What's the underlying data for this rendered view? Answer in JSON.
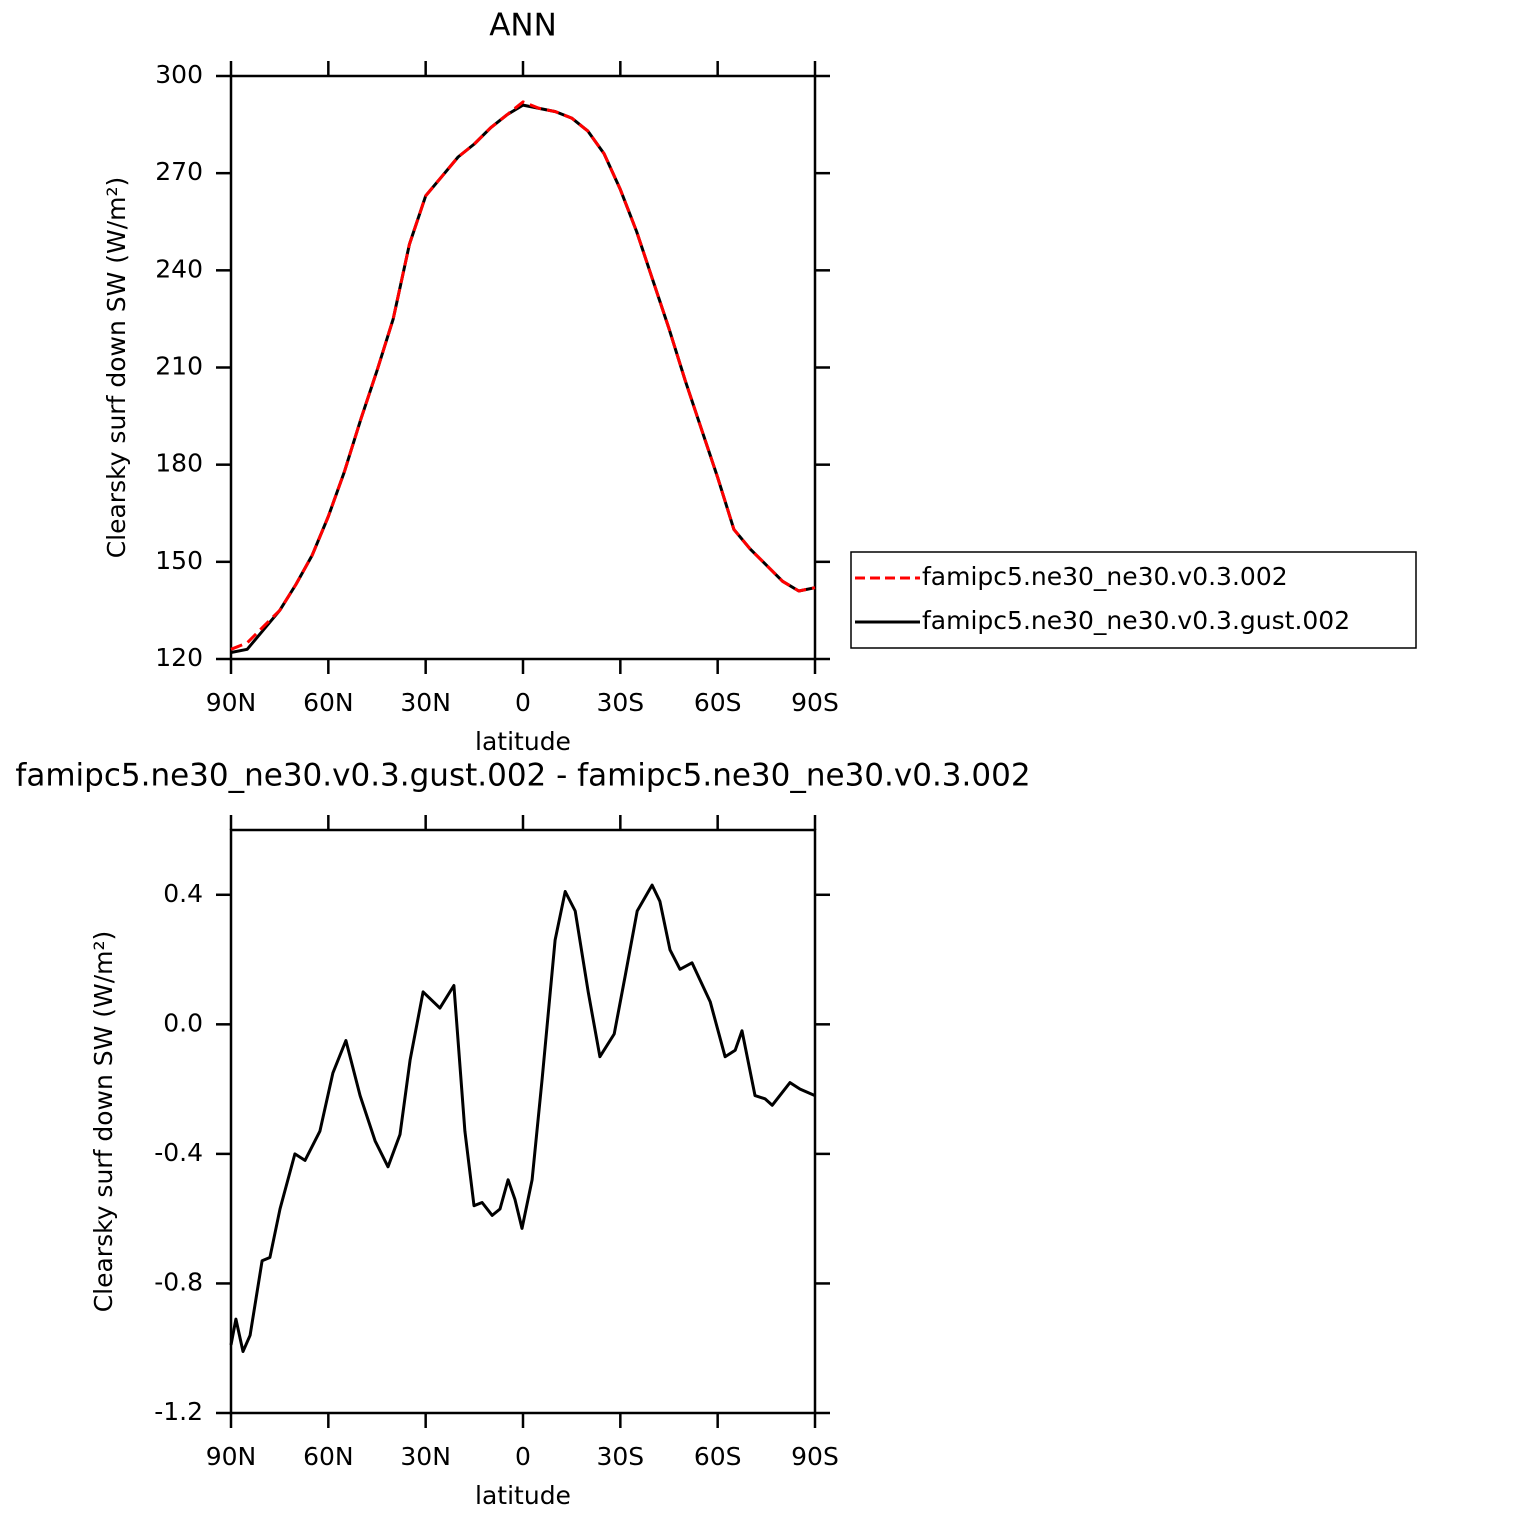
{
  "chart_data": [
    {
      "type": "line",
      "title": "ANN",
      "xlabel": "latitude",
      "ylabel": "Clearsky surf down SW (W/m²)",
      "x": [
        90,
        85,
        80,
        75,
        70,
        65,
        60,
        55,
        50,
        45,
        40,
        35,
        30,
        25,
        20,
        15,
        10,
        5,
        0,
        -5,
        -10,
        -15,
        -20,
        -25,
        -30,
        -35,
        -40,
        -45,
        -50,
        -55,
        -60,
        -65,
        -70,
        -75,
        -80,
        -85,
        -90
      ],
      "series": [
        {
          "name": "famipc5.ne30_ne30.v0.3.002",
          "color": "#ff0000",
          "linestyle": "dashed",
          "values": [
            123,
            125,
            130,
            135,
            143,
            152,
            164,
            178,
            194,
            209,
            225,
            248,
            263,
            269,
            275,
            279,
            284,
            288,
            292,
            290,
            289,
            287,
            283,
            276,
            265,
            252,
            237,
            222,
            206,
            191,
            176,
            160,
            154,
            149,
            144,
            141,
            142
          ]
        },
        {
          "name": "famipc5.ne30_ne30.v0.3.gust.002",
          "color": "#000000",
          "linestyle": "solid",
          "values": [
            122,
            123,
            129,
            135,
            143,
            152,
            164,
            178,
            194,
            209,
            225,
            248,
            263,
            269,
            275,
            279,
            284,
            288,
            291,
            290,
            289,
            287,
            283,
            276,
            265,
            252,
            237,
            222,
            206,
            191,
            176,
            160,
            154,
            149,
            144,
            141,
            142
          ]
        }
      ],
      "xlim": [
        90,
        -90
      ],
      "xticks": [
        {
          "value": 90,
          "label": "90N"
        },
        {
          "value": 60,
          "label": "60N"
        },
        {
          "value": 30,
          "label": "30N"
        },
        0,
        {
          "value": -30,
          "label": "30S"
        },
        {
          "value": -60,
          "label": "60S"
        },
        {
          "value": -90,
          "label": "90S"
        }
      ],
      "ylim": [
        120,
        300
      ],
      "yticks": [
        120,
        150,
        180,
        210,
        240,
        270,
        300
      ],
      "legend": "right"
    },
    {
      "type": "line",
      "title": "famipc5.ne30_ne30.v0.3.gust.002 - famipc5.ne30_ne30.v0.3.002",
      "xlabel": "latitude",
      "ylabel": "Clearsky surf down SW (W/m²)",
      "x": [
        90,
        88.5,
        86.3,
        84.1,
        80.4,
        78,
        74.9,
        70.3,
        67.2,
        62.6,
        58.6,
        54.6,
        50.2,
        45.6,
        41.6,
        37.9,
        34.8,
        30.8,
        25.6,
        21.3,
        17.9,
        15.1,
        12.6,
        9.5,
        7.1,
        4.6,
        2.5,
        0.3,
        -2.8,
        -5.9,
        -9.9,
        -13,
        -16.1,
        -20.1,
        -23.7,
        -28.1,
        -31.5,
        -35.2,
        -39.8,
        -42.2,
        -45.3,
        -48.4,
        -52.1,
        -57.7,
        -62.3,
        -65.4,
        -67.5,
        -71.5,
        -74.6,
        -76.8,
        -82.3,
        -85.4,
        -90
      ],
      "values": [
        -0.99,
        -0.91,
        -1.01,
        -0.96,
        -0.73,
        -0.72,
        -0.57,
        -0.4,
        -0.42,
        -0.33,
        -0.15,
        -0.05,
        -0.22,
        -0.36,
        -0.44,
        -0.34,
        -0.11,
        0.1,
        0.05,
        0.12,
        -0.33,
        -0.56,
        -0.55,
        -0.59,
        -0.57,
        -0.48,
        -0.54,
        -0.63,
        -0.48,
        -0.17,
        0.26,
        0.41,
        0.35,
        0.1,
        -0.1,
        -0.03,
        0.15,
        0.35,
        0.43,
        0.38,
        0.23,
        0.17,
        0.19,
        0.07,
        -0.1,
        -0.08,
        -0.02,
        -0.22,
        -0.23,
        -0.25,
        -0.18,
        -0.2,
        -0.22
      ],
      "color": "#000000",
      "xlim": [
        90,
        -90
      ],
      "xticks": [
        {
          "value": 90,
          "label": "90N"
        },
        {
          "value": 60,
          "label": "60N"
        },
        {
          "value": 30,
          "label": "30N"
        },
        0,
        {
          "value": -30,
          "label": "30S"
        },
        {
          "value": -60,
          "label": "60S"
        },
        {
          "value": -90,
          "label": "90S"
        }
      ],
      "ylim": [
        -1.2,
        0.6
      ],
      "yticks": [
        -1.2,
        -0.8,
        -0.4,
        {
          "value": 0,
          "label": "0.0"
        },
        0.4
      ]
    }
  ]
}
